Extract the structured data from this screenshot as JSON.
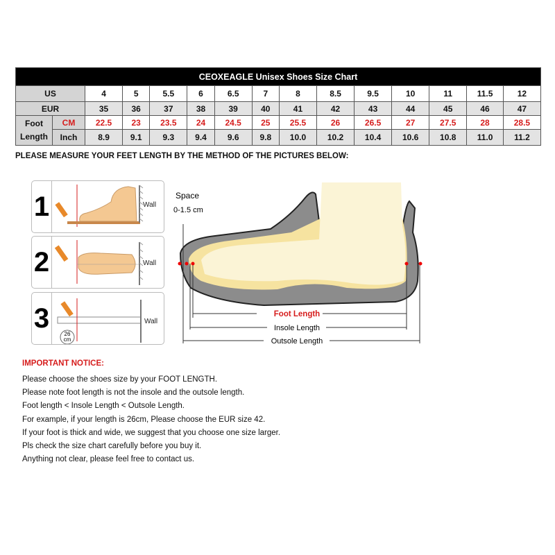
{
  "chart_title": "CEOXEAGLE Unisex Shoes Size Chart",
  "table": {
    "us_label": "US",
    "eur_label": "EUR",
    "foot_length_label": "Foot Length",
    "cm_label": "CM",
    "inch_label": "Inch",
    "us": [
      "4",
      "5",
      "5.5",
      "6",
      "6.5",
      "7",
      "8",
      "8.5",
      "9.5",
      "10",
      "11",
      "11.5",
      "12"
    ],
    "eur": [
      "35",
      "36",
      "37",
      "38",
      "39",
      "40",
      "41",
      "42",
      "43",
      "44",
      "45",
      "46",
      "47"
    ],
    "cm": [
      "22.5",
      "23",
      "23.5",
      "24",
      "24.5",
      "25",
      "25.5",
      "26",
      "26.5",
      "27",
      "27.5",
      "28",
      "28.5"
    ],
    "inch": [
      "8.9",
      "9.1",
      "9.3",
      "9.4",
      "9.6",
      "9.8",
      "10.0",
      "10.2",
      "10.4",
      "10.6",
      "10.8",
      "11.0",
      "11.2"
    ]
  },
  "instruction_heading": "PLEASE MEASURE YOUR FEET LENGTH BY THE METHOD OF THE PICTURES BELOW:",
  "steps": [
    {
      "number": "1",
      "wall": "Wall"
    },
    {
      "number": "2",
      "wall": "Wall"
    },
    {
      "number": "3",
      "wall": "Wall",
      "ruler_value": "26",
      "ruler_unit": "cm"
    }
  ],
  "diagram": {
    "space_label": "Space",
    "space_value": "0-1.5 cm",
    "foot_length": "Foot Length",
    "insole_length": "Insole Length",
    "outsole_length": "Outsole Length"
  },
  "notice": {
    "title": "IMPORTANT NOTICE:",
    "lines": [
      "Please choose the shoes size by your FOOT LENGTH.",
      "Please note foot length is not the insole and the outsole length.",
      "Foot length < Insole Length < Outsole Length.",
      "For example, if your length is 26cm, Please choose the EUR size 42.",
      "If your foot is thick and wide, we suggest that you choose one size larger.",
      "Pls check the size chart carefully before you buy it.",
      "Anything not clear, please feel free to contact us."
    ]
  },
  "colors": {
    "accent_red": "#d61c1c",
    "header_black": "#000000",
    "sole_grey": "#8c8c8c",
    "foot_cream": "#fbf4d6",
    "pencil_orange": "#e8892a"
  }
}
